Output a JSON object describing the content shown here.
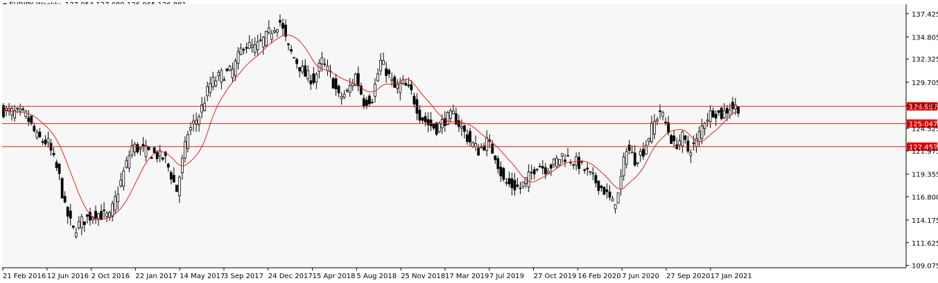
{
  "header": {
    "symbol": "EURJPY,Weekly",
    "ohlc": "127.054 127.089 126.065 126.881"
  },
  "colors": {
    "background": "#ffffff",
    "plot_bg": "#f7f7f7",
    "candle": "#000000",
    "ma": "#e8231c",
    "hline": "#d91b1b",
    "label_bg": "#e00000",
    "label_text": "#ffffff",
    "axis": "#000000"
  },
  "chart_data": {
    "type": "candlestick",
    "ylim": [
      108.8,
      138.5
    ],
    "y_ticks": [
      137.425,
      134.805,
      132.325,
      129.705,
      127.085,
      124.525,
      121.975,
      119.355,
      116.8,
      114.175,
      111.625,
      109.075
    ],
    "y_tick_labels": [
      "137.425",
      "134.805",
      "132.325",
      "129.705",
      "127.085",
      "124.525",
      "121.975",
      "119.355",
      "116.800",
      "114.175",
      "111.625",
      "109.075"
    ],
    "x_tick_labels": [
      "21 Feb 2016",
      "12 Jun 2016",
      "2 Oct 2016",
      "22 Jan 2017",
      "14 May 2017",
      "3 Sep 2017",
      "24 Dec 2017",
      "15 Apr 2018",
      "5 Aug 2018",
      "25 Nov 2018",
      "17 Mar 2019",
      "7 Jul 2019",
      "27 Oct 2019",
      "16 Feb 2020",
      "7 Jun 2020",
      "27 Sep 2020",
      "17 Jan 2021"
    ],
    "horizontal_lines": [
      {
        "value": 126.987,
        "label": "126.987"
      },
      {
        "value": 125.047,
        "label": "125.047"
      },
      {
        "value": 122.452,
        "label": "122.452"
      }
    ],
    "moving_average_color": "#e8231c",
    "close_anchors": [
      [
        0,
        126.5
      ],
      [
        8,
        126.0
      ],
      [
        12,
        123.5
      ],
      [
        16,
        122.8
      ],
      [
        20,
        119.0
      ],
      [
        22,
        115.5
      ],
      [
        25,
        113.0
      ],
      [
        28,
        114.0
      ],
      [
        33,
        115.0
      ],
      [
        38,
        114.5
      ],
      [
        42,
        118.5
      ],
      [
        46,
        122.5
      ],
      [
        50,
        122.0
      ],
      [
        55,
        121.5
      ],
      [
        58,
        121.0
      ],
      [
        62,
        117.5
      ],
      [
        66,
        124.0
      ],
      [
        70,
        126.0
      ],
      [
        74,
        129.5
      ],
      [
        78,
        130.5
      ],
      [
        82,
        131.0
      ],
      [
        86,
        134.0
      ],
      [
        90,
        133.5
      ],
      [
        94,
        134.8
      ],
      [
        97,
        136.0
      ],
      [
        99,
        136.5
      ],
      [
        102,
        133.5
      ],
      [
        105,
        132.0
      ],
      [
        108,
        130.5
      ],
      [
        111,
        130.0
      ],
      [
        114,
        132.0
      ],
      [
        117,
        130.5
      ],
      [
        120,
        128.0
      ],
      [
        123,
        128.5
      ],
      [
        126,
        130.5
      ],
      [
        129,
        127.5
      ],
      [
        132,
        128.0
      ],
      [
        135,
        132.0
      ],
      [
        137,
        131.0
      ],
      [
        140,
        129.0
      ],
      [
        143,
        129.5
      ],
      [
        146,
        128.5
      ],
      [
        149,
        126.0
      ],
      [
        152,
        125.0
      ],
      [
        155,
        124.5
      ],
      [
        158,
        125.5
      ],
      [
        161,
        126.0
      ],
      [
        164,
        124.5
      ],
      [
        167,
        123.0
      ],
      [
        170,
        122.0
      ],
      [
        173,
        123.0
      ],
      [
        176,
        121.5
      ],
      [
        179,
        118.5
      ],
      [
        182,
        118.0
      ],
      [
        185,
        117.8
      ],
      [
        188,
        119.0
      ],
      [
        191,
        120.5
      ],
      [
        194,
        120.0
      ],
      [
        197,
        120.5
      ],
      [
        200,
        121.5
      ],
      [
        203,
        121.0
      ],
      [
        206,
        120.5
      ],
      [
        209,
        119.5
      ],
      [
        212,
        118.5
      ],
      [
        215,
        117.5
      ],
      [
        218,
        116.0
      ],
      [
        220,
        117.0
      ],
      [
        223,
        122.5
      ],
      [
        226,
        121.0
      ],
      [
        229,
        122.0
      ],
      [
        232,
        124.5
      ],
      [
        235,
        126.5
      ],
      [
        237,
        125.0
      ],
      [
        240,
        122.5
      ],
      [
        243,
        123.5
      ],
      [
        245,
        122.0
      ],
      [
        248,
        123.0
      ],
      [
        251,
        125.5
      ],
      [
        254,
        126.5
      ],
      [
        257,
        126.0
      ],
      [
        260,
        126.9
      ]
    ]
  }
}
